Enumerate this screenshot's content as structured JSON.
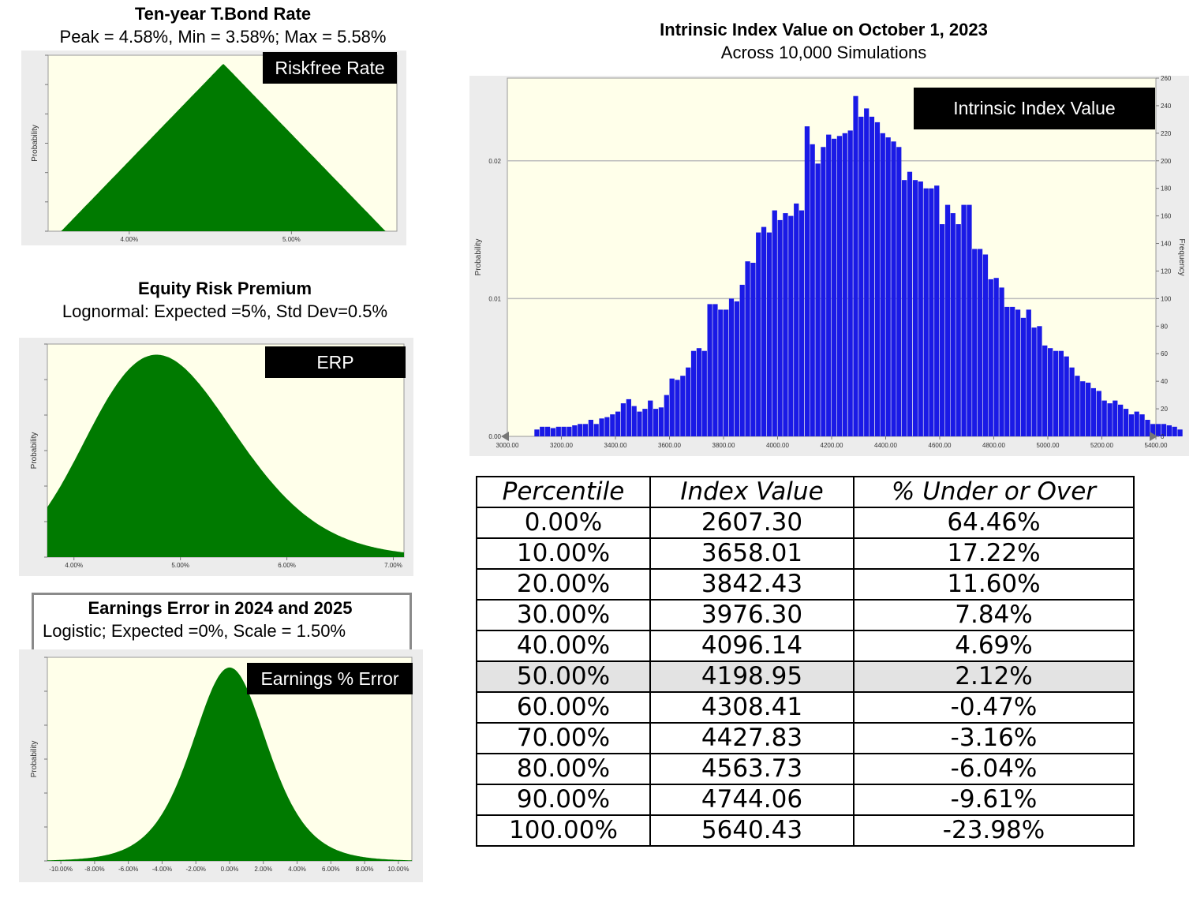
{
  "riskfree": {
    "title": "Ten-year T.Bond Rate",
    "subtitle": "Peak = 4.58%, Min = 3.58%;  Max = 5.58%",
    "label": "Riskfree Rate",
    "chart_data": {
      "type": "area",
      "shape": "triangular",
      "min": 3.58,
      "peak": 4.58,
      "max": 5.58,
      "xticks": [
        "4.00%",
        "5.00%"
      ],
      "ylabel": "Probability",
      "color": "#007a00"
    }
  },
  "erp": {
    "title": "Equity Risk Premium",
    "subtitle": "Lognormal: Expected =5%, Std Dev=0.5%",
    "label": "ERP",
    "chart_data": {
      "type": "area",
      "shape": "lognormal",
      "expected": 5.0,
      "stdev": 0.5,
      "xticks": [
        "4.00%",
        "5.00%",
        "6.00%",
        "7.00%"
      ],
      "ylabel": "Probability",
      "color": "#007a00"
    }
  },
  "earnings": {
    "title": "Earnings Error in 2024 and 2025",
    "subtitle": "Logistic; Expected =0%, Scale = 1.50%",
    "label": "Earnings % Error",
    "chart_data": {
      "type": "area",
      "shape": "logistic",
      "expected": 0,
      "scale": 1.5,
      "xticks": [
        "-10.00%",
        "-8.00%",
        "-6.00%",
        "-4.00%",
        "-2.00%",
        "0.00%",
        "2.00%",
        "4.00%",
        "6.00%",
        "8.00%",
        "10.00%"
      ],
      "ylabel": "Probability",
      "color": "#007a00"
    }
  },
  "histogram": {
    "title": "Intrinsic Index Value on October 1, 2023",
    "subtitle": "Across 10,000 Simulations",
    "label": "Intrinsic Index Value",
    "chart_data": {
      "type": "bar",
      "bin_start": 3100,
      "bin_width": 20,
      "values": [
        5,
        7,
        7,
        6,
        7,
        7,
        7,
        8,
        9,
        9,
        12,
        9,
        13,
        14,
        16,
        18,
        24,
        27,
        22,
        18,
        20,
        26,
        20,
        21,
        30,
        42,
        41,
        44,
        50,
        62,
        64,
        62,
        96,
        96,
        92,
        92,
        100,
        98,
        110,
        127,
        126,
        148,
        152,
        148,
        164,
        157,
        162,
        160,
        169,
        164,
        225,
        212,
        198,
        210,
        219,
        216,
        218,
        220,
        222,
        247,
        232,
        238,
        232,
        228,
        220,
        217,
        214,
        210,
        186,
        192,
        186,
        185,
        180,
        180,
        182,
        154,
        168,
        162,
        154,
        168,
        168,
        136,
        136,
        132,
        114,
        115,
        108,
        94,
        94,
        92,
        86,
        92,
        79,
        80,
        66,
        64,
        62,
        62,
        58,
        50,
        44,
        40,
        39,
        35,
        33,
        26,
        24,
        26,
        23,
        20,
        16,
        18,
        16,
        12,
        9,
        9,
        9,
        8,
        7,
        5
      ],
      "xticks": [
        "3000.00",
        "3200.00",
        "3400.00",
        "3600.00",
        "3800.00",
        "4000.00",
        "4200.00",
        "4400.00",
        "4600.00",
        "4800.00",
        "5000.00",
        "5200.00",
        "5400.00"
      ],
      "yleft_ticks": [
        "0.02",
        "0.01",
        "0.00"
      ],
      "yright_ticks": [
        "260",
        "240",
        "220",
        "200",
        "180",
        "160",
        "140",
        "120",
        "100",
        "80",
        "60",
        "40",
        "20",
        "0"
      ],
      "ylabel_left": "Probability",
      "ylabel_right": "Frequency",
      "xlim": [
        3000,
        5400
      ],
      "ylim": [
        0,
        260
      ],
      "color": "#1a1ae6"
    }
  },
  "table": {
    "headers": [
      "Percentile",
      "Index Value",
      "% Under or Over"
    ],
    "rows": [
      [
        "0.00%",
        "2607.30",
        "64.46%"
      ],
      [
        "10.00%",
        "3658.01",
        "17.22%"
      ],
      [
        "20.00%",
        "3842.43",
        "11.60%"
      ],
      [
        "30.00%",
        "3976.30",
        "7.84%"
      ],
      [
        "40.00%",
        "4096.14",
        "4.69%"
      ],
      [
        "50.00%",
        "4198.95",
        "2.12%"
      ],
      [
        "60.00%",
        "4308.41",
        "-0.47%"
      ],
      [
        "70.00%",
        "4427.83",
        "-3.16%"
      ],
      [
        "80.00%",
        "4563.73",
        "-6.04%"
      ],
      [
        "90.00%",
        "4744.06",
        "-9.61%"
      ],
      [
        "100.00%",
        "5640.43",
        "-23.98%"
      ]
    ],
    "highlight_row": 5
  }
}
